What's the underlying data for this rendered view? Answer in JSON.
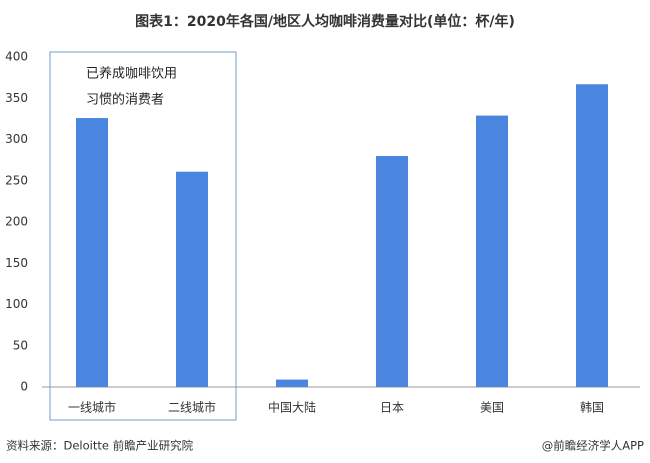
{
  "chart_data": {
    "type": "bar",
    "title": "图表1：2020年各国/地区人均咖啡消费量对比(单位：杯/年)",
    "categories": [
      "一线城市",
      "二线城市",
      "中国大陆",
      "日本",
      "美国",
      "韩国"
    ],
    "values": [
      326,
      261,
      9,
      280,
      329,
      367
    ],
    "color": "#4a86e0",
    "ylim": [
      0,
      400
    ],
    "yticks": [
      0,
      50,
      100,
      150,
      200,
      250,
      300,
      350,
      400
    ],
    "grid": false,
    "annotation": [
      "已养成咖啡饮用",
      "习惯的消费者"
    ],
    "source": "资料来源：Deloitte 前瞻产业研究院",
    "credit": "@前瞻经济学人APP"
  }
}
